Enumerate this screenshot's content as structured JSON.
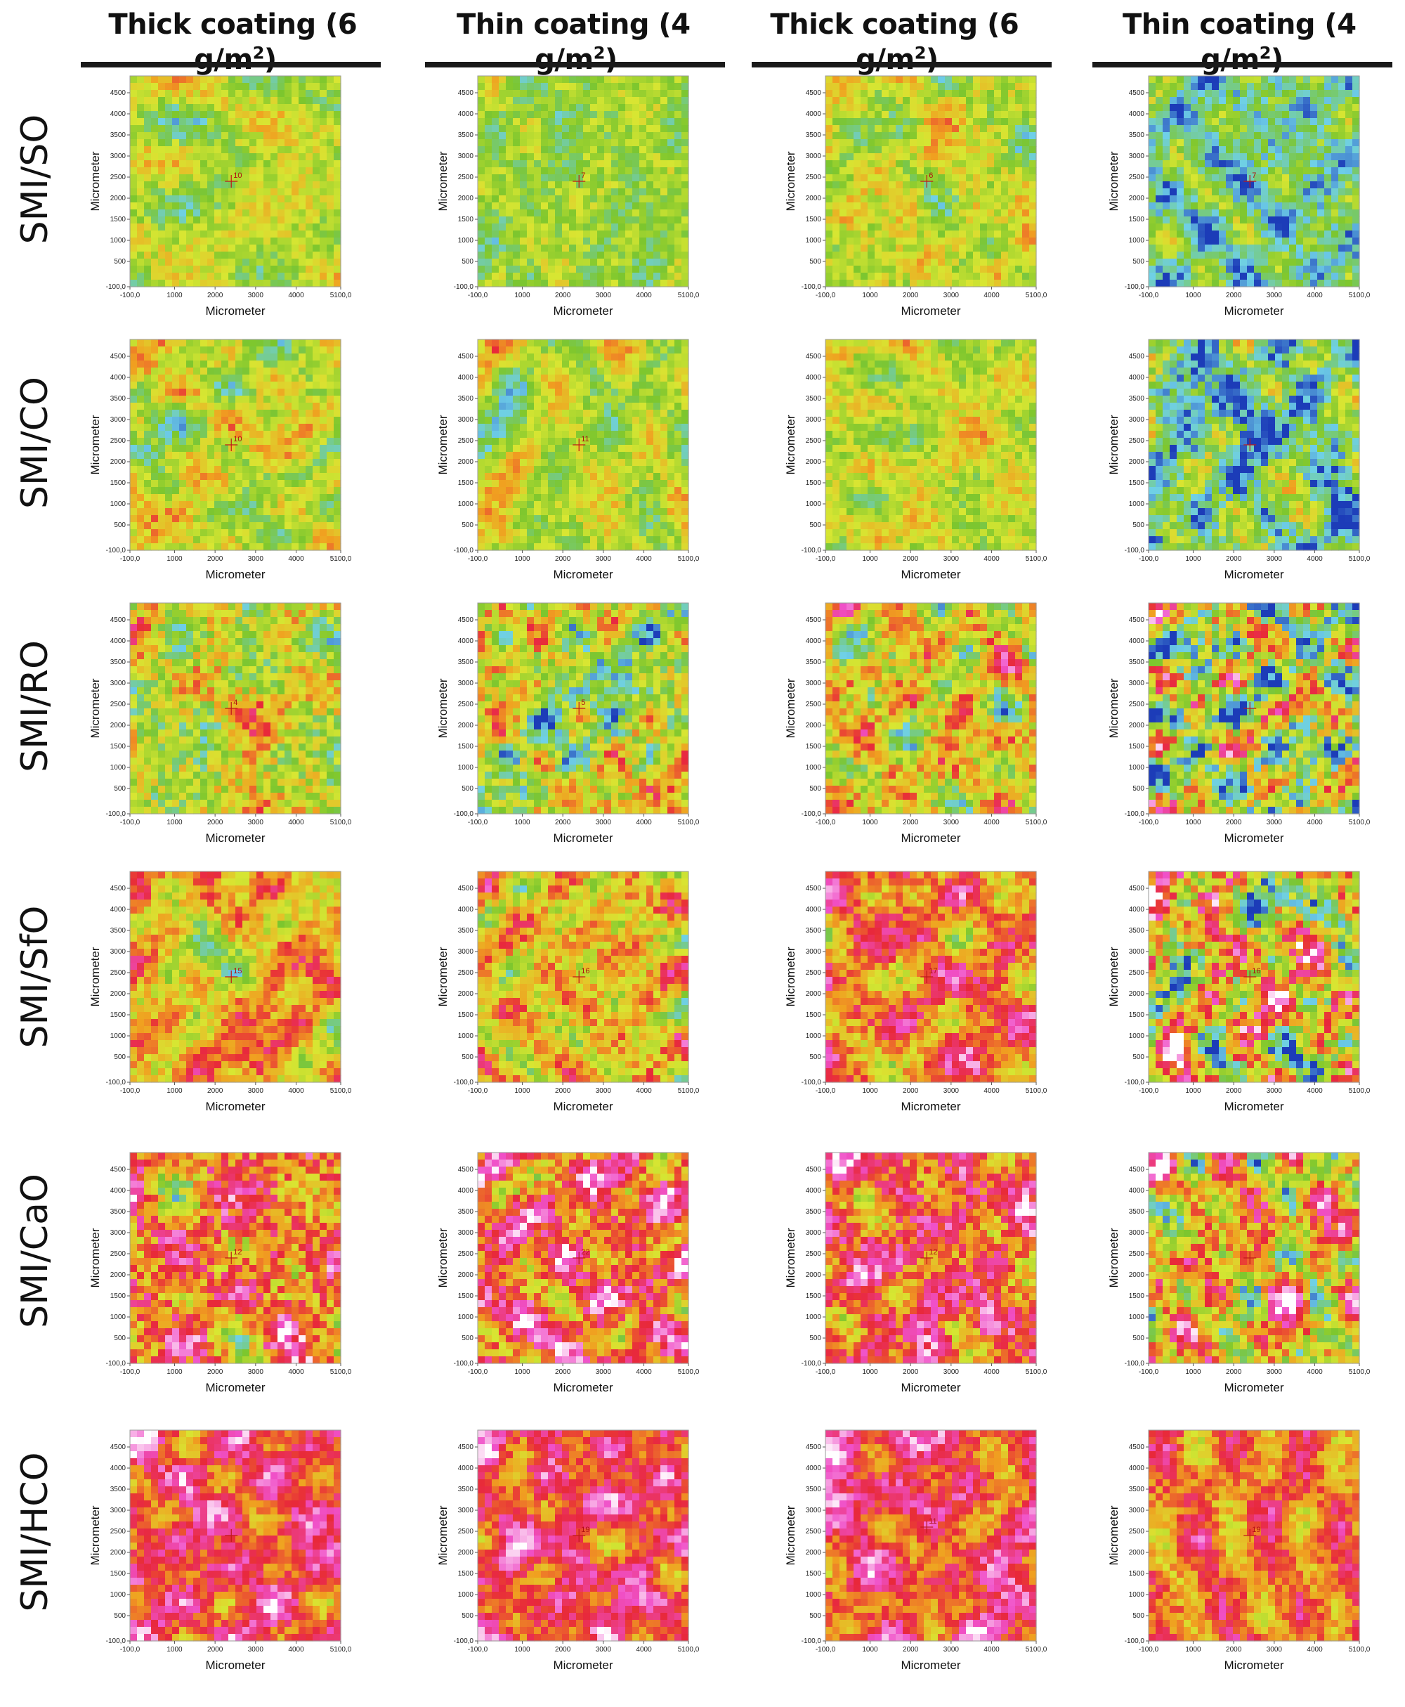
{
  "column_headers": [
    {
      "text": "Thick coating (6 g/m",
      "sup": "2",
      "close": ")"
    },
    {
      "text": "Thin coating (4 g/m",
      "sup": "2",
      "close": ")"
    },
    {
      "text": "Thick coating (6 g/m",
      "sup": "2",
      "close": ")"
    },
    {
      "text": "Thin coating (4 g/m",
      "sup": "2",
      "close": ")"
    }
  ],
  "row_labels": [
    "SMI/SO",
    "SMI/CO",
    "SMI/RO",
    "SMI/SfO",
    "SMI/CaO",
    "SMI/HCO"
  ],
  "colors": {
    "scale": [
      "#1c3cb8",
      "#6fd0e8",
      "#7cc62e",
      "#d8e632",
      "#f0a020",
      "#e8283a",
      "#f050c8",
      "#ffffff"
    ],
    "axis_frame": "#9a9a9a",
    "marker": "#c01818",
    "header_rule": "#1a1a1a"
  },
  "chart_data": {
    "type": "heatmap",
    "xlabel": "Micrometer",
    "ylabel": "Micrometer",
    "xlim": [
      -100,
      5100
    ],
    "ylim": [
      -100,
      4900
    ],
    "x_tick_labels": [
      "-100,0",
      "1000",
      "2000",
      "3000",
      "4000",
      "5100,0"
    ],
    "y_tick_labels": [
      "-100,0",
      "500",
      "1000",
      "1500",
      "2000",
      "2500",
      "3000",
      "3500",
      "4000",
      "4500"
    ],
    "panels": [
      {
        "row": "SMI/SO",
        "column": 1,
        "marker": {
          "x": 2400,
          "y": 2400,
          "label": "10"
        },
        "level_mean": 0.38,
        "level_spread": 0.22
      },
      {
        "row": "SMI/SO",
        "column": 2,
        "marker": {
          "x": 2400,
          "y": 2400,
          "label": "7"
        },
        "level_mean": 0.33,
        "level_spread": 0.22
      },
      {
        "row": "SMI/SO",
        "column": 3,
        "marker": {
          "x": 2400,
          "y": 2400,
          "label": "6"
        },
        "level_mean": 0.4,
        "level_spread": 0.24
      },
      {
        "row": "SMI/SO",
        "column": 4,
        "marker": {
          "x": 2400,
          "y": 2400,
          "label": "7"
        },
        "level_mean": 0.22,
        "level_spread": 0.26
      },
      {
        "row": "SMI/CO",
        "column": 1,
        "marker": {
          "x": 2400,
          "y": 2400,
          "label": "10"
        },
        "level_mean": 0.4,
        "level_spread": 0.24
      },
      {
        "row": "SMI/CO",
        "column": 2,
        "marker": {
          "x": 2400,
          "y": 2400,
          "label": "11"
        },
        "level_mean": 0.38,
        "level_spread": 0.22
      },
      {
        "row": "SMI/CO",
        "column": 3,
        "marker": null,
        "level_mean": 0.4,
        "level_spread": 0.22
      },
      {
        "row": "SMI/CO",
        "column": 4,
        "marker": {
          "x": 2400,
          "y": 2400,
          "label": ""
        },
        "level_mean": 0.22,
        "level_spread": 0.34
      },
      {
        "row": "SMI/RO",
        "column": 1,
        "marker": {
          "x": 2400,
          "y": 2400,
          "label": "4"
        },
        "level_mean": 0.42,
        "level_spread": 0.36
      },
      {
        "row": "SMI/RO",
        "column": 2,
        "marker": {
          "x": 2400,
          "y": 2400,
          "label": "5"
        },
        "level_mean": 0.4,
        "level_spread": 0.36
      },
      {
        "row": "SMI/RO",
        "column": 3,
        "marker": null,
        "level_mean": 0.46,
        "level_spread": 0.36
      },
      {
        "row": "SMI/RO",
        "column": 4,
        "marker": {
          "x": 2400,
          "y": 2400,
          "label": ""
        },
        "level_mean": 0.36,
        "level_spread": 0.52
      },
      {
        "row": "SMI/SfO",
        "column": 1,
        "marker": {
          "x": 2400,
          "y": 2400,
          "label": "15"
        },
        "level_mean": 0.52,
        "level_spread": 0.26
      },
      {
        "row": "SMI/SfO",
        "column": 2,
        "marker": {
          "x": 2400,
          "y": 2400,
          "label": "16"
        },
        "level_mean": 0.5,
        "level_spread": 0.3
      },
      {
        "row": "SMI/SfO",
        "column": 3,
        "marker": {
          "x": 2400,
          "y": 2400,
          "label": "17"
        },
        "level_mean": 0.62,
        "level_spread": 0.28
      },
      {
        "row": "SMI/SfO",
        "column": 4,
        "marker": {
          "x": 2400,
          "y": 2400,
          "label": "16"
        },
        "level_mean": 0.5,
        "level_spread": 0.52
      },
      {
        "row": "SMI/CaO",
        "column": 1,
        "marker": {
          "x": 2400,
          "y": 2400,
          "label": "12"
        },
        "level_mean": 0.62,
        "level_spread": 0.4
      },
      {
        "row": "SMI/CaO",
        "column": 2,
        "marker": {
          "x": 2400,
          "y": 2400,
          "label": "22"
        },
        "level_mean": 0.68,
        "level_spread": 0.36
      },
      {
        "row": "SMI/CaO",
        "column": 3,
        "marker": {
          "x": 2400,
          "y": 2400,
          "label": "12"
        },
        "level_mean": 0.68,
        "level_spread": 0.34
      },
      {
        "row": "SMI/CaO",
        "column": 4,
        "marker": {
          "x": 2400,
          "y": 2400,
          "label": ""
        },
        "level_mean": 0.52,
        "level_spread": 0.4
      },
      {
        "row": "SMI/HCO",
        "column": 1,
        "marker": {
          "x": 2400,
          "y": 2400,
          "label": ""
        },
        "level_mean": 0.72,
        "level_spread": 0.24
      },
      {
        "row": "SMI/HCO",
        "column": 2,
        "marker": {
          "x": 2400,
          "y": 2400,
          "label": "19"
        },
        "level_mean": 0.72,
        "level_spread": 0.24
      },
      {
        "row": "SMI/HCO",
        "column": 3,
        "marker": {
          "x": 2400,
          "y": 2600,
          "label": "11"
        },
        "level_mean": 0.72,
        "level_spread": 0.24
      },
      {
        "row": "SMI/HCO",
        "column": 4,
        "marker": {
          "x": 2400,
          "y": 2400,
          "label": "19"
        },
        "level_mean": 0.62,
        "level_spread": 0.24
      }
    ]
  }
}
